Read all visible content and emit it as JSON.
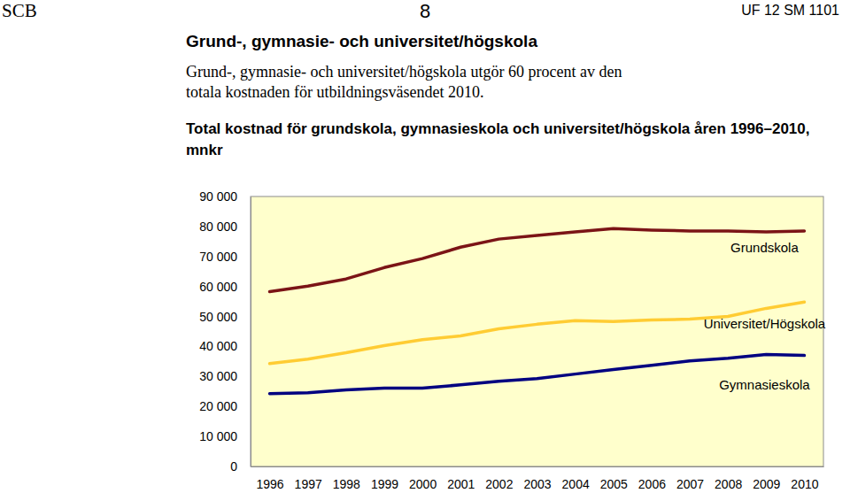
{
  "header": {
    "left": "SCB",
    "center": "8",
    "right": "UF 12 SM 1101"
  },
  "section_title": "Grund-, gymnasie- och universitet/högskola",
  "intro": "Grund-, gymnasie- och universitet/högskola utgör 60 procent av den totala kostnaden för utbildningsväsendet 2010.",
  "chart_data": {
    "type": "line",
    "title": "Total kostnad för grundskola, gymnasieskola och universitet/högskola åren 1996–2010, mnkr",
    "categories": [
      "1996",
      "1997",
      "1998",
      "1999",
      "2000",
      "2001",
      "2002",
      "2003",
      "2004",
      "2005",
      "2006",
      "2007",
      "2008",
      "2009",
      "2010"
    ],
    "series": [
      {
        "name": "Grundskola",
        "color": "#7b1416",
        "values": [
          58300,
          60100,
          62500,
          66300,
          69300,
          73100,
          75800,
          77000,
          78200,
          79300,
          78800,
          78500,
          78500,
          78200,
          78500
        ]
      },
      {
        "name": "Universitet/Högskola",
        "color": "#ffcc33",
        "values": [
          34300,
          35800,
          37900,
          40300,
          42300,
          43500,
          45900,
          47400,
          48600,
          48300,
          48800,
          49100,
          50000,
          52700,
          54800
        ]
      },
      {
        "name": "Gymnasieskola",
        "color": "#000080",
        "values": [
          24300,
          24600,
          25500,
          26100,
          26100,
          27200,
          28400,
          29300,
          30800,
          32300,
          33700,
          35200,
          36100,
          37300,
          37000
        ]
      }
    ],
    "ylim": [
      0,
      90000
    ],
    "yticks": [
      0,
      {
        "value": 10000,
        "label": "10 000"
      },
      {
        "value": 20000,
        "label": "20 000"
      },
      {
        "value": 30000,
        "label": "30 000"
      },
      {
        "value": 40000,
        "label": "40 000"
      },
      {
        "value": 50000,
        "label": "50 000"
      },
      {
        "value": 60000,
        "label": "60 000"
      },
      {
        "value": 70000,
        "label": "70 000"
      },
      {
        "value": 80000,
        "label": "80 000"
      },
      {
        "value": 90000,
        "label": "90 000"
      }
    ],
    "grid": false
  }
}
